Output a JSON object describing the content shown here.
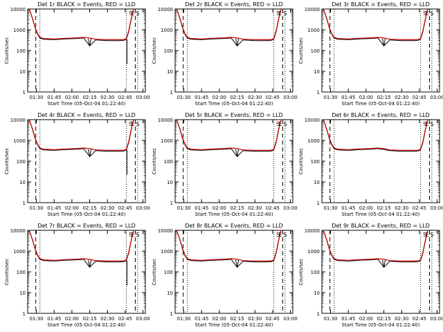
{
  "figure": {
    "ylabel": "Counts/sec",
    "xlabel": "Start Time (05-Oct-04 01:22:40)",
    "event_color": "#000000",
    "lld_color": "#cc0000",
    "panels": [
      {
        "title": "Det 1r BLACK = Events, RED = LLD",
        "style": "notch2"
      },
      {
        "title": "Det 2r BLACK = Events, RED = LLD",
        "style": "notch1"
      },
      {
        "title": "Det 3r BLACK = Events, RED = LLD",
        "style": "notch1"
      },
      {
        "title": "Det 4r BLACK = Events, RED = LLD",
        "style": "notch2"
      },
      {
        "title": "Det 5r BLACK = Events, RED = LLD",
        "style": "notch1"
      },
      {
        "title": "Det 6r BLACK = Events, RED = LLD",
        "style": "flat"
      },
      {
        "title": "Det 7r BLACK = Events, RED = LLD",
        "style": "notch2"
      },
      {
        "title": "Det 8r BLACK = Events, RED = LLD",
        "style": "notch1"
      },
      {
        "title": "Det 9r BLACK = Events, RED = LLD",
        "style": "notch1"
      }
    ],
    "corner_markers": [
      "S",
      "E",
      "S"
    ]
  },
  "chart_data": {
    "type": "line",
    "yscale": "log",
    "ylim": [
      1,
      10000
    ],
    "xlim": [
      "01:22:40",
      "03:02:00"
    ],
    "yticks": [
      "1",
      "10",
      "100",
      "1000",
      "10000"
    ],
    "xticks": [
      "01:30",
      "01:45",
      "02:00",
      "02:15",
      "02:30",
      "02:45",
      "03:00"
    ],
    "markers": {
      "dashed": [
        "01:29:30",
        "02:53:30"
      ],
      "dotted": [
        "01:33:00",
        "02:46:00",
        "02:55:30"
      ]
    },
    "series": [
      {
        "name": "Events",
        "x": [
          "01:24:00",
          "01:27:00",
          "01:29:00",
          "01:31:00",
          "01:33:00",
          "01:36:00",
          "01:45:00",
          "01:55:00",
          "02:05:00",
          "02:10:00",
          "02:15:00",
          "02:20:00",
          "02:30:00",
          "02:40:00",
          "02:44:00",
          "02:46:00",
          "02:48:00",
          "02:50:00",
          "02:52:00"
        ],
        "values": [
          10000,
          3000,
          1200,
          600,
          400,
          350,
          330,
          360,
          380,
          400,
          370,
          320,
          300,
          300,
          310,
          350,
          800,
          3000,
          10000
        ]
      },
      {
        "name": "LLD",
        "x": [
          "01:24:00",
          "01:27:00",
          "01:29:00",
          "01:31:00",
          "01:33:00",
          "01:36:00",
          "01:45:00",
          "01:55:00",
          "02:05:00",
          "02:10:00",
          "02:15:00",
          "02:20:00",
          "02:30:00",
          "02:40:00",
          "02:44:00",
          "02:46:00",
          "02:48:00",
          "02:50:00",
          "02:52:00"
        ],
        "values": [
          10000,
          3200,
          1300,
          650,
          430,
          380,
          360,
          390,
          410,
          430,
          400,
          350,
          330,
          330,
          340,
          380,
          900,
          3300,
          10000
        ]
      }
    ]
  }
}
